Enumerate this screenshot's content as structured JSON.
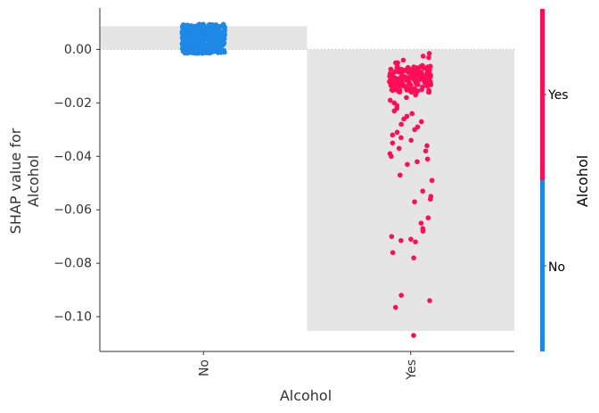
{
  "chart_data": {
    "type": "scatter",
    "title": "",
    "xlabel": "Alcohol",
    "ylabel_lines": [
      "SHAP value for",
      "Alcohol"
    ],
    "categories": [
      "No",
      "Yes"
    ],
    "ylim": [
      -0.113,
      0.0155
    ],
    "yticks": [
      0.0,
      -0.02,
      -0.04,
      -0.06,
      -0.08,
      -0.1
    ],
    "ytick_labels": [
      "0.00",
      "−0.02",
      "−0.04",
      "−0.06",
      "−0.08",
      "−0.10"
    ],
    "zero_reference_line": true,
    "background_bars": [
      {
        "category": "No",
        "value": 0.0087
      },
      {
        "category": "Yes",
        "value": -0.1053
      }
    ],
    "colorbar": {
      "label": "Alcohol",
      "segments": [
        {
          "label": "Yes",
          "color": "#ff0d57"
        },
        {
          "label": "No",
          "color": "#1e88e5"
        }
      ]
    },
    "series": [
      {
        "name": "No",
        "color": "#1e88e5",
        "points_description": "dense cluster",
        "y_range": [
          -0.0015,
          0.0095
        ],
        "count": 420
      },
      {
        "name": "Yes",
        "color": "#ff0d57",
        "y": [
          -0.0015,
          -0.0025,
          -0.003,
          -0.004,
          -0.005,
          -0.005,
          -0.006,
          -0.0065,
          -0.007,
          -0.007,
          -0.0075,
          -0.008,
          -0.008,
          -0.0085,
          -0.009,
          -0.009,
          -0.0095,
          -0.01,
          -0.0105,
          -0.011,
          -0.0115,
          -0.012,
          -0.0125,
          -0.013,
          -0.0135,
          -0.014,
          -0.0145,
          -0.015,
          -0.0155,
          -0.016,
          -0.017,
          -0.018,
          -0.019,
          -0.02,
          -0.021,
          -0.022,
          -0.023,
          -0.024,
          -0.025,
          -0.026,
          -0.027,
          -0.028,
          -0.029,
          -0.03,
          -0.031,
          -0.032,
          -0.033,
          -0.034,
          -0.035,
          -0.036,
          -0.037,
          -0.038,
          -0.039,
          -0.04,
          -0.041,
          -0.042,
          -0.043,
          -0.047,
          -0.049,
          -0.053,
          -0.055,
          -0.056,
          -0.057,
          -0.063,
          -0.065,
          -0.067,
          -0.068,
          -0.07,
          -0.071,
          -0.0715,
          -0.072,
          -0.076,
          -0.078,
          -0.092,
          -0.094,
          -0.0965,
          -0.107
        ],
        "dense_band": [
          -0.016,
          -0.006
        ]
      }
    ]
  }
}
